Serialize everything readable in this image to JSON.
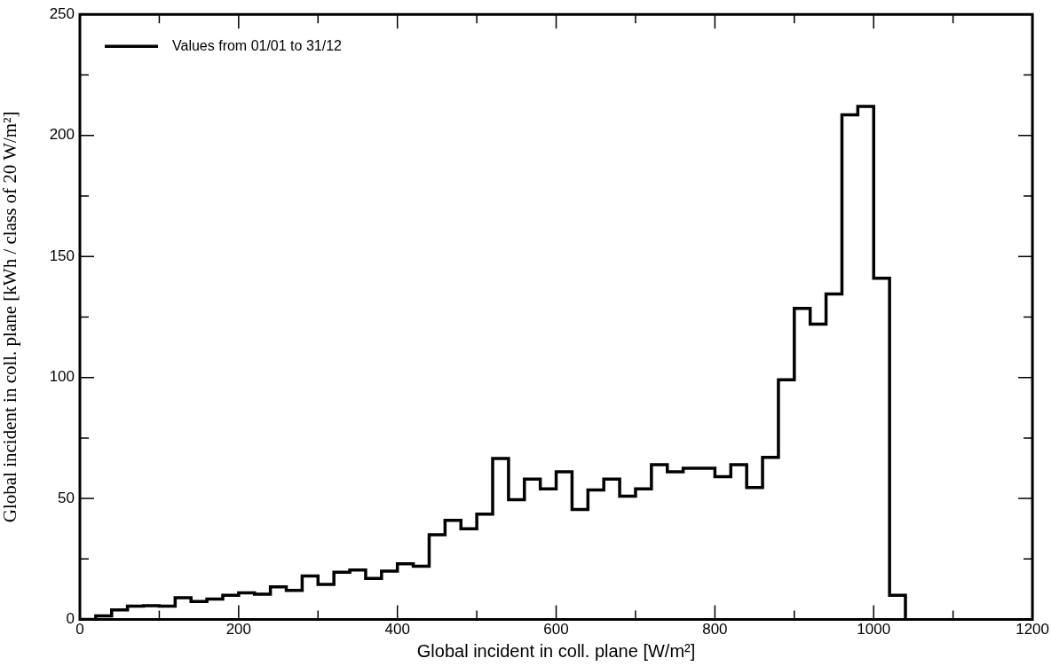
{
  "chart_data": {
    "type": "histogram",
    "xlabel": "Global incident in coll. plane [W/m²]",
    "ylabel": "Global incident in coll. plane [kWh / class of 20 W/m²]",
    "bins": [
      0,
      20,
      40,
      60,
      80,
      100,
      120,
      140,
      160,
      180,
      200,
      220,
      240,
      260,
      280,
      300,
      320,
      340,
      360,
      380,
      400,
      420,
      440,
      460,
      480,
      500,
      520,
      540,
      560,
      580,
      600,
      620,
      640,
      660,
      680,
      700,
      720,
      740,
      760,
      780,
      800,
      820,
      840,
      860,
      880,
      900,
      920,
      940,
      960,
      980,
      1000,
      1020,
      1040
    ],
    "series": [
      {
        "name": "Values from 01/01 to 31/12",
        "color": "#000000",
        "values": [
          0,
          1.5,
          4,
          5.5,
          5.7,
          5.5,
          9,
          7.5,
          8.5,
          10,
          11,
          10.5,
          13.5,
          12,
          18,
          14.5,
          19.5,
          20.5,
          17,
          20,
          23,
          22,
          35,
          41,
          37.5,
          43.5,
          66.5,
          49.5,
          58,
          54,
          61,
          45.5,
          53.5,
          58,
          51,
          54,
          64,
          61,
          62.5,
          62.5,
          59,
          64,
          54.5,
          67,
          99,
          128.5,
          122,
          134.5,
          208.5,
          212,
          141,
          10
        ]
      }
    ],
    "xlim": [
      0,
      1200
    ],
    "xticks": [
      0,
      {
        "value": 100,
        "label": null
      },
      200,
      {
        "value": 300,
        "label": null
      },
      400,
      {
        "value": 500,
        "label": null
      },
      600,
      {
        "value": 700,
        "label": null
      },
      800,
      {
        "value": 900,
        "label": null
      },
      1000,
      {
        "value": 1100,
        "label": null
      },
      1200
    ],
    "ylim": [
      0,
      250
    ],
    "yticks": [
      0,
      {
        "value": 25,
        "label": null
      },
      50,
      {
        "value": 75,
        "label": null
      },
      100,
      {
        "value": 125,
        "label": null
      },
      150,
      {
        "value": 175,
        "label": null
      },
      200,
      {
        "value": 225,
        "label": null
      },
      250
    ],
    "legend": "top left",
    "grid": false
  }
}
